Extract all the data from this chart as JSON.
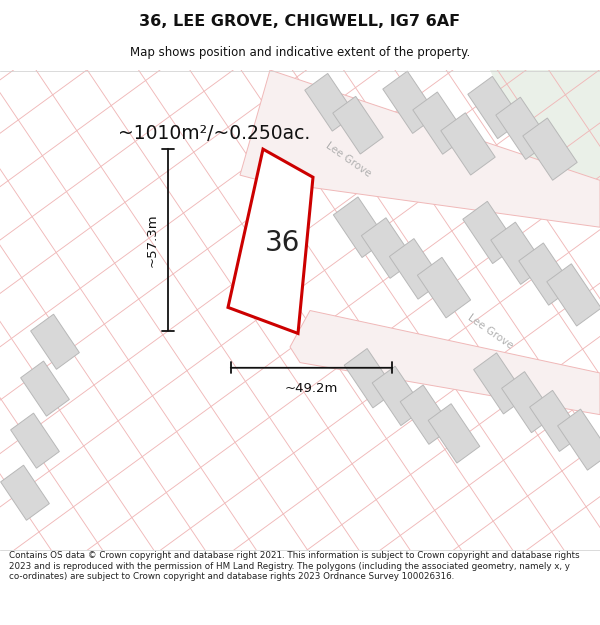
{
  "title": "36, LEE GROVE, CHIGWELL, IG7 6AF",
  "subtitle": "Map shows position and indicative extent of the property.",
  "area_label": "~1010m²/~0.250ac.",
  "width_label": "~49.2m",
  "height_label": "~57.3m",
  "plot_number": "36",
  "footer": "Contains OS data © Crown copyright and database right 2021. This information is subject to Crown copyright and database rights 2023 and is reproduced with the permission of HM Land Registry. The polygons (including the associated geometry, namely x, y co-ordinates) are subject to Crown copyright and database rights 2023 Ordnance Survey 100026316.",
  "bg_color": "#ffffff",
  "map_bg": "#ffffff",
  "line_color": "#f0b8b8",
  "building_color": "#d8d8d8",
  "building_edge": "#b8b8b8",
  "plot_color": "#ffffff",
  "plot_edge": "#cc0000",
  "dim_line_color": "#111111",
  "road_label_color": "#b0b0b0",
  "title_color": "#111111",
  "footer_color": "#222222",
  "road_name1": "Lee Grove",
  "road_name2": "Lee Grove",
  "green_area": "#eaf0e8"
}
